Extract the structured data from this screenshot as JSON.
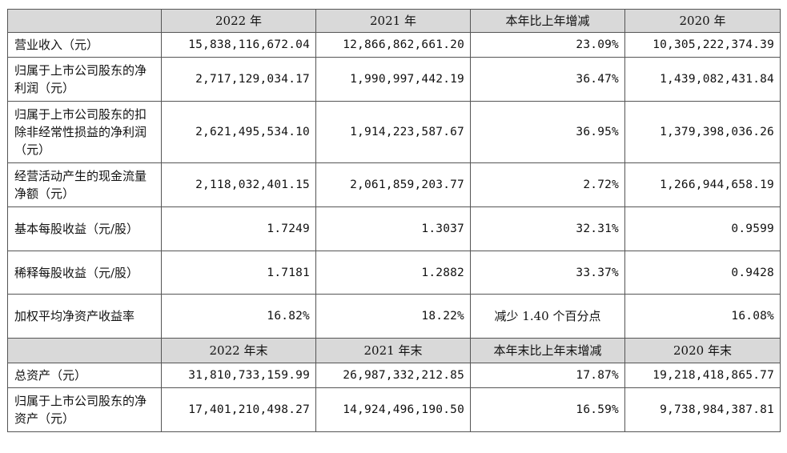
{
  "header1": [
    "",
    "2022 年",
    "2021 年",
    "本年比上年增减",
    "2020 年"
  ],
  "rows1": [
    {
      "label": "营业收入（元）",
      "v2022": "15,838,116,672.04",
      "v2021": "12,866,862,661.20",
      "change": "23.09%",
      "v2020": "10,305,222,374.39"
    },
    {
      "label": "归属于上市公司股东的净利润（元）",
      "v2022": "2,717,129,034.17",
      "v2021": "1,990,997,442.19",
      "change": "36.47%",
      "v2020": "1,439,082,431.84"
    },
    {
      "label": "归属于上市公司股东的扣除非经常性损益的净利润（元）",
      "v2022": "2,621,495,534.10",
      "v2021": "1,914,223,587.67",
      "change": "36.95%",
      "v2020": "1,379,398,036.26"
    },
    {
      "label": "经营活动产生的现金流量净额（元）",
      "v2022": "2,118,032,401.15",
      "v2021": "2,061,859,203.77",
      "change": "2.72%",
      "v2020": "1,266,944,658.19"
    },
    {
      "label": "基本每股收益（元/股）",
      "v2022": "1.7249",
      "v2021": "1.3037",
      "change": "32.31%",
      "v2020": "0.9599"
    },
    {
      "label": "稀释每股收益（元/股）",
      "v2022": "1.7181",
      "v2021": "1.2882",
      "change": "33.37%",
      "v2020": "0.9428"
    },
    {
      "label": "加权平均净资产收益率",
      "v2022": "16.82%",
      "v2021": "18.22%",
      "change": "减少 1.40 个百分点",
      "v2020": "16.08%"
    }
  ],
  "header2": [
    "",
    "2022 年末",
    "2021 年末",
    "本年末比上年末增减",
    "2020 年末"
  ],
  "rows2": [
    {
      "label": "总资产（元）",
      "v2022": "31,810,733,159.99",
      "v2021": "26,987,332,212.85",
      "change": "17.87%",
      "v2020": "19,218,418,865.77"
    },
    {
      "label": "归属于上市公司股东的净资产（元）",
      "v2022": "17,401,210,498.27",
      "v2021": "14,924,496,190.50",
      "change": "16.59%",
      "v2020": "9,738,984,387.81"
    }
  ]
}
